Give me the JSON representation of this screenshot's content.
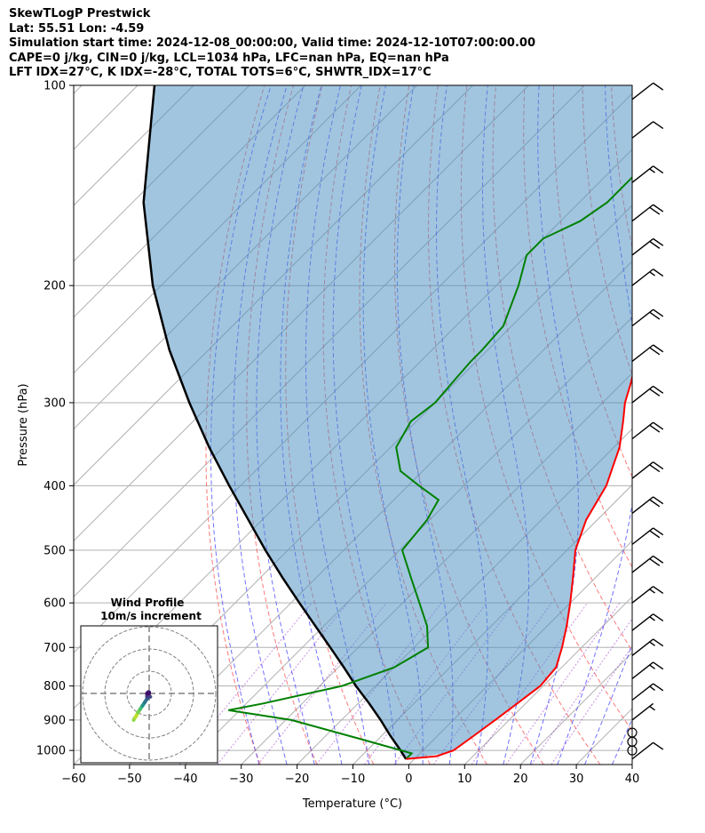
{
  "header": {
    "line1": "SkewTLogP Prestwick",
    "line2": "Lat: 55.51   Lon: -4.59",
    "line3": "Simulation start time: 2024-12-08_00:00:00, Valid time: 2024-12-10T07:00:00.00",
    "line4": "CAPE=0 j/kg, CIN=0 j/kg, LCL=1034 hPa, LFC=nan hPa, EQ=nan hPa",
    "line5": "LFT IDX=27°C, K IDX=-28°C, TOTAL TOTS=6°C, SHWTR_IDX=17°C"
  },
  "chart_data": {
    "type": "skewt",
    "xlabel": "Temperature (°C)",
    "ylabel": "Pressure (hPa)",
    "xlim": [
      -60,
      40
    ],
    "ylim": [
      1050,
      100
    ],
    "x_ticks": [
      "−60",
      "−50",
      "−40",
      "−30",
      "−20",
      "−10",
      "0",
      "10",
      "20",
      "30",
      "40"
    ],
    "x_tick_values": [
      -60,
      -50,
      -40,
      -30,
      -20,
      -10,
      0,
      10,
      20,
      30,
      40
    ],
    "y_ticks": [
      "100",
      "200",
      "300",
      "400",
      "500",
      "600",
      "700",
      "800",
      "900",
      "1000"
    ],
    "y_tick_values": [
      100,
      200,
      300,
      400,
      500,
      600,
      700,
      800,
      900,
      1000
    ],
    "temperature": [
      [
        1030,
        -1.5
      ],
      [
        1020,
        3.5
      ],
      [
        1000,
        5.5
      ],
      [
        950,
        6.5
      ],
      [
        900,
        7.5
      ],
      [
        850,
        8.5
      ],
      [
        800,
        9.5
      ],
      [
        750,
        9.0
      ],
      [
        700,
        6.5
      ],
      [
        650,
        3.5
      ],
      [
        600,
        0.0
      ],
      [
        550,
        -4.0
      ],
      [
        500,
        -8.5
      ],
      [
        450,
        -12.0
      ],
      [
        400,
        -14.5
      ],
      [
        350,
        -19.0
      ],
      [
        320,
        -23.0
      ],
      [
        300,
        -26.0
      ],
      [
        280,
        -28.5
      ],
      [
        250,
        -33.0
      ],
      [
        220,
        -37.5
      ],
      [
        200,
        -40.5
      ],
      [
        180,
        -41.5
      ],
      [
        160,
        -43.5
      ],
      [
        140,
        -44.0
      ],
      [
        120,
        -47.0
      ],
      [
        110,
        -50.0
      ],
      [
        100,
        -52.0
      ]
    ],
    "dewpoint": [
      [
        1030,
        -1.5
      ],
      [
        1010,
        -1.5
      ],
      [
        960,
        -13.5
      ],
      [
        900,
        -29.0
      ],
      [
        870,
        -42.0
      ],
      [
        850,
        -37.0
      ],
      [
        800,
        -26.0
      ],
      [
        750,
        -20.0
      ],
      [
        700,
        -17.5
      ],
      [
        650,
        -21.5
      ],
      [
        600,
        -27.0
      ],
      [
        550,
        -33.0
      ],
      [
        500,
        -39.5
      ],
      [
        450,
        -40.5
      ],
      [
        420,
        -42.0
      ],
      [
        400,
        -48.0
      ],
      [
        380,
        -54.0
      ],
      [
        350,
        -59.0
      ],
      [
        320,
        -61.0
      ],
      [
        300,
        -60.0
      ],
      [
        280,
        -60.5
      ],
      [
        260,
        -61.0
      ],
      [
        250,
        -61.0
      ],
      [
        230,
        -61.5
      ],
      [
        200,
        -66.0
      ],
      [
        180,
        -70.0
      ],
      [
        170,
        -70.0
      ],
      [
        160,
        -66.5
      ],
      [
        150,
        -65.0
      ],
      [
        140,
        -65.0
      ],
      [
        130,
        -65.0
      ],
      [
        120,
        -65.0
      ],
      [
        110,
        -63.0
      ],
      [
        100,
        -62.0
      ]
    ],
    "parcel": [
      [
        1030,
        -1.5
      ],
      [
        1000,
        -4.0
      ],
      [
        950,
        -8.5
      ],
      [
        900,
        -13.0
      ],
      [
        850,
        -18.0
      ],
      [
        800,
        -23.5
      ],
      [
        750,
        -29.0
      ],
      [
        700,
        -35.0
      ],
      [
        650,
        -41.5
      ],
      [
        600,
        -48.5
      ],
      [
        550,
        -56.0
      ],
      [
        500,
        -64.0
      ],
      [
        450,
        -72.5
      ],
      [
        400,
        -82.0
      ],
      [
        350,
        -92.5
      ],
      [
        300,
        -104.0
      ],
      [
        250,
        -117.0
      ],
      [
        200,
        -131.5
      ],
      [
        150,
        -148.0
      ],
      [
        100,
        -167.0
      ]
    ],
    "wind_barbs_pressure": [
      1030,
      1000,
      970,
      940,
      900,
      840,
      780,
      720,
      660,
      600,
      540,
      490,
      440,
      390,
      340,
      300,
      260,
      230,
      200,
      180,
      160,
      140,
      120,
      105
    ],
    "wind_barbs": [
      [
        1030,
        10
      ],
      [
        1000,
        0
      ],
      [
        970,
        0
      ],
      [
        940,
        0
      ],
      [
        900,
        5
      ],
      [
        840,
        15
      ],
      [
        780,
        15
      ],
      [
        720,
        15
      ],
      [
        660,
        15
      ],
      [
        600,
        15
      ],
      [
        540,
        20
      ],
      [
        490,
        20
      ],
      [
        440,
        20
      ],
      [
        390,
        20
      ],
      [
        340,
        20
      ],
      [
        300,
        20
      ],
      [
        260,
        20
      ],
      [
        230,
        20
      ],
      [
        200,
        15
      ],
      [
        180,
        20
      ],
      [
        160,
        20
      ],
      [
        140,
        15
      ],
      [
        120,
        10
      ],
      [
        105,
        10
      ]
    ],
    "hodograph": {
      "title": "Wind Profile",
      "subtitle": "10m/s increment",
      "rings": [
        10,
        20,
        30
      ],
      "points": [
        [
          -7.0,
          -12.0
        ],
        [
          -6.5,
          -11.0
        ],
        [
          -6.0,
          -10.5
        ],
        [
          -5.5,
          -9.5
        ],
        [
          -5.0,
          -8.5
        ],
        [
          -4.0,
          -7.0
        ],
        [
          -3.0,
          -5.5
        ],
        [
          -2.0,
          -4.0
        ],
        [
          -1.0,
          -2.5
        ],
        [
          -1.0,
          -2.0
        ],
        [
          0.5,
          -1.5
        ],
        [
          -1.0,
          -1.0
        ],
        [
          -0.5,
          0.0
        ],
        [
          0.0,
          0.0
        ],
        [
          -0.5,
          0.5
        ],
        [
          -1.0,
          0.0
        ],
        [
          -0.5,
          0.5
        ],
        [
          0.0,
          0.5
        ]
      ]
    },
    "grid": true
  }
}
